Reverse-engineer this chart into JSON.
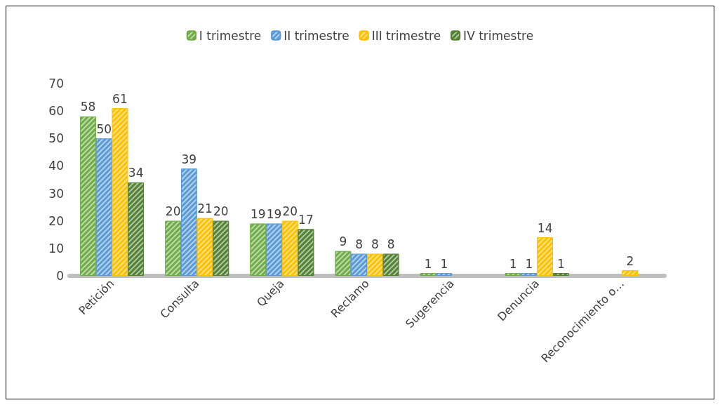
{
  "chart_data": {
    "type": "bar",
    "categories": [
      "Petición",
      "Consulta",
      "Queja",
      "Reclamo",
      "Sugerencia",
      "Denuncia",
      "Reconocimiento o…"
    ],
    "series": [
      {
        "name": "I trimestre",
        "color": "#70ad47",
        "values": [
          58,
          20,
          19,
          9,
          1,
          1,
          null
        ]
      },
      {
        "name": "II trimestre",
        "color": "#5b9bd5",
        "values": [
          50,
          39,
          19,
          8,
          1,
          1,
          null
        ]
      },
      {
        "name": "III trimestre",
        "color": "#ffc000",
        "values": [
          61,
          21,
          20,
          8,
          null,
          14,
          2
        ]
      },
      {
        "name": "IV trimestre",
        "color": "#548235",
        "values": [
          34,
          20,
          17,
          8,
          null,
          1,
          null
        ]
      }
    ],
    "ylim": [
      0,
      70
    ],
    "yticks": [
      0,
      10,
      20,
      30,
      40,
      50,
      60,
      70
    ],
    "grid": false,
    "legend": "top",
    "data_labels": true
  }
}
